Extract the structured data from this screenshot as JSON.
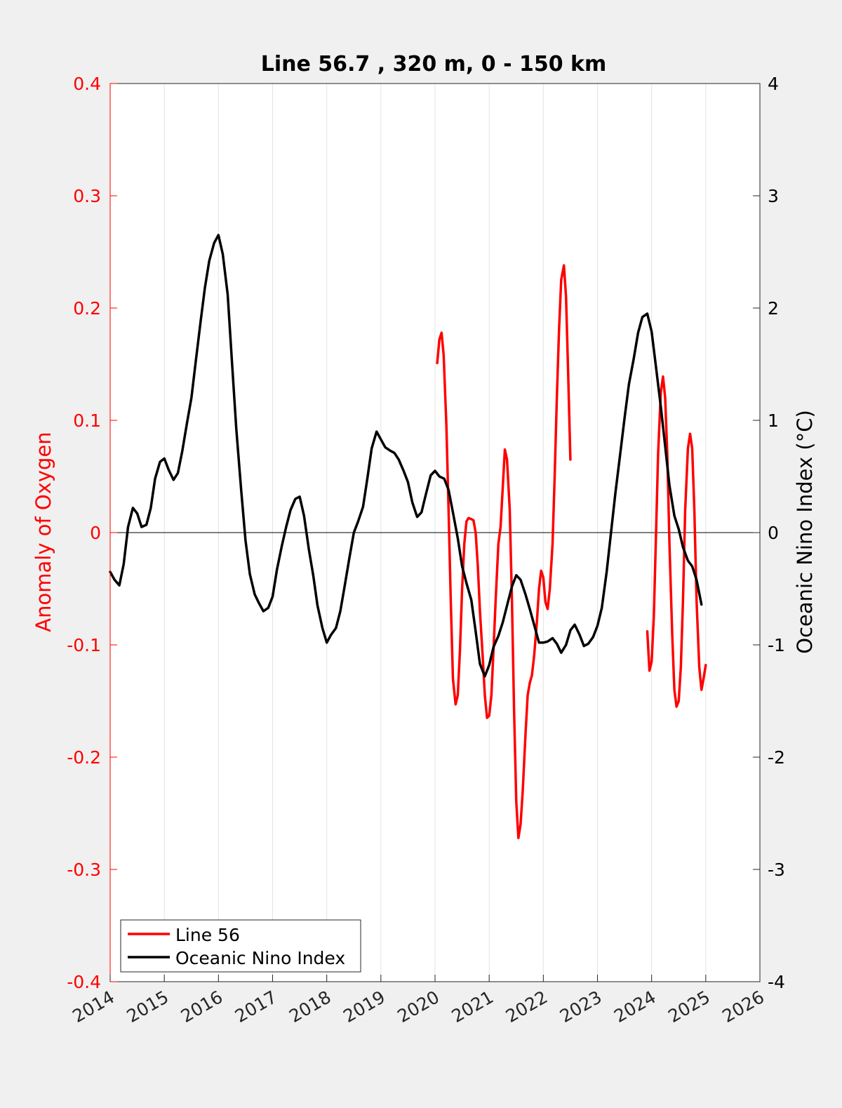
{
  "chart_data": {
    "type": "line",
    "title": "Line 56.7 , 320 m, 0 - 150 km",
    "xlabel": "",
    "ylabel_left": "Anomaly of Oxygen",
    "ylabel_right": "Oceanic Nino Index (°C)",
    "xlim": [
      2014,
      2026
    ],
    "ylim_left": [
      -0.4,
      0.4
    ],
    "ylim_right": [
      -4,
      4
    ],
    "x_ticks": [
      2014,
      2015,
      2016,
      2017,
      2018,
      2019,
      2020,
      2021,
      2022,
      2023,
      2024,
      2025,
      2026
    ],
    "x_tick_labels": [
      "2014",
      "2015",
      "2016",
      "2017",
      "2018",
      "2019",
      "2020",
      "2021",
      "2022",
      "2023",
      "2024",
      "2025",
      "2026"
    ],
    "y_ticks_left": [
      -0.4,
      -0.3,
      -0.2,
      -0.1,
      0,
      0.1,
      0.2,
      0.3,
      0.4
    ],
    "y_tick_labels_left": [
      "-0.4",
      "-0.3",
      "-0.2",
      "-0.1",
      "0",
      "0.1",
      "0.2",
      "0.3",
      "0.4"
    ],
    "y_ticks_right": [
      -4,
      -3,
      -2,
      -1,
      0,
      1,
      2,
      3,
      4
    ],
    "y_tick_labels_right": [
      "-4",
      "-3",
      "-2",
      "-1",
      "0",
      "1",
      "2",
      "3",
      "4"
    ],
    "grid": "vertical",
    "zero_line": true,
    "legend_position": "bottom-left",
    "colors": {
      "line56": "#ff0000",
      "oni": "#000000",
      "axis_left": "#ff0000",
      "axis_right": "#000000"
    },
    "series": [
      {
        "name": "Line 56",
        "axis": "left",
        "color": "#ff0000",
        "segments": [
          [
            [
              2020.04,
              0.151
            ],
            [
              2020.08,
              0.172
            ],
            [
              2020.12,
              0.178
            ],
            [
              2020.16,
              0.158
            ],
            [
              2020.21,
              0.095
            ],
            [
              2020.25,
              0.02
            ],
            [
              2020.29,
              -0.06
            ],
            [
              2020.33,
              -0.13
            ],
            [
              2020.38,
              -0.153
            ],
            [
              2020.42,
              -0.145
            ],
            [
              2020.46,
              -0.105
            ],
            [
              2020.5,
              -0.05
            ],
            [
              2020.54,
              -0.01
            ],
            [
              2020.58,
              0.01
            ],
            [
              2020.62,
              0.013
            ],
            [
              2020.67,
              0.012
            ],
            [
              2020.71,
              0.011
            ],
            [
              2020.75,
              0.0
            ],
            [
              2020.79,
              -0.03
            ],
            [
              2020.83,
              -0.07
            ],
            [
              2020.88,
              -0.11
            ],
            [
              2020.92,
              -0.145
            ],
            [
              2020.96,
              -0.165
            ],
            [
              2021.0,
              -0.163
            ],
            [
              2021.04,
              -0.145
            ],
            [
              2021.08,
              -0.105
            ],
            [
              2021.12,
              -0.06
            ],
            [
              2021.17,
              -0.01
            ],
            [
              2021.21,
              0.005
            ],
            [
              2021.25,
              0.04
            ],
            [
              2021.29,
              0.074
            ],
            [
              2021.33,
              0.065
            ],
            [
              2021.38,
              0.02
            ],
            [
              2021.42,
              -0.06
            ],
            [
              2021.46,
              -0.16
            ],
            [
              2021.5,
              -0.24
            ],
            [
              2021.54,
              -0.272
            ],
            [
              2021.58,
              -0.26
            ],
            [
              2021.62,
              -0.23
            ],
            [
              2021.67,
              -0.18
            ],
            [
              2021.71,
              -0.145
            ],
            [
              2021.75,
              -0.134
            ],
            [
              2021.79,
              -0.127
            ],
            [
              2021.83,
              -0.11
            ],
            [
              2021.88,
              -0.08
            ],
            [
              2021.92,
              -0.05
            ],
            [
              2021.96,
              -0.034
            ],
            [
              2022.0,
              -0.04
            ],
            [
              2022.04,
              -0.062
            ],
            [
              2022.08,
              -0.068
            ],
            [
              2022.12,
              -0.05
            ],
            [
              2022.17,
              -0.01
            ],
            [
              2022.21,
              0.05
            ],
            [
              2022.25,
              0.12
            ],
            [
              2022.29,
              0.18
            ],
            [
              2022.33,
              0.225
            ],
            [
              2022.38,
              0.238
            ],
            [
              2022.42,
              0.21
            ],
            [
              2022.46,
              0.14
            ],
            [
              2022.5,
              0.065
            ]
          ],
          [
            [
              2023.92,
              -0.088
            ],
            [
              2023.96,
              -0.123
            ],
            [
              2024.0,
              -0.115
            ],
            [
              2024.04,
              -0.075
            ],
            [
              2024.08,
              -0.005
            ],
            [
              2024.12,
              0.07
            ],
            [
              2024.17,
              0.125
            ],
            [
              2024.21,
              0.139
            ],
            [
              2024.25,
              0.12
            ],
            [
              2024.29,
              0.07
            ],
            [
              2024.33,
              -0.01
            ],
            [
              2024.38,
              -0.09
            ],
            [
              2024.42,
              -0.14
            ],
            [
              2024.46,
              -0.155
            ],
            [
              2024.5,
              -0.15
            ],
            [
              2024.54,
              -0.12
            ],
            [
              2024.58,
              -0.06
            ],
            [
              2024.62,
              0.02
            ],
            [
              2024.67,
              0.075
            ],
            [
              2024.71,
              0.088
            ],
            [
              2024.75,
              0.075
            ],
            [
              2024.79,
              0.02
            ],
            [
              2024.83,
              -0.06
            ],
            [
              2024.88,
              -0.12
            ],
            [
              2024.92,
              -0.14
            ],
            [
              2024.96,
              -0.13
            ],
            [
              2025.0,
              -0.118
            ]
          ]
        ]
      },
      {
        "name": "Oceanic Nino Index",
        "axis": "right",
        "color": "#000000",
        "segments": [
          [
            [
              2014.0,
              -0.35
            ],
            [
              2014.08,
              -0.42
            ],
            [
              2014.17,
              -0.47
            ],
            [
              2014.25,
              -0.28
            ],
            [
              2014.33,
              0.05
            ],
            [
              2014.42,
              0.22
            ],
            [
              2014.5,
              0.17
            ],
            [
              2014.58,
              0.05
            ],
            [
              2014.67,
              0.07
            ],
            [
              2014.75,
              0.22
            ],
            [
              2014.83,
              0.48
            ],
            [
              2014.92,
              0.63
            ],
            [
              2015.0,
              0.66
            ],
            [
              2015.08,
              0.56
            ],
            [
              2015.17,
              0.47
            ],
            [
              2015.25,
              0.53
            ],
            [
              2015.33,
              0.72
            ],
            [
              2015.42,
              0.98
            ],
            [
              2015.5,
              1.2
            ],
            [
              2015.58,
              1.52
            ],
            [
              2015.67,
              1.88
            ],
            [
              2015.75,
              2.18
            ],
            [
              2015.83,
              2.42
            ],
            [
              2015.92,
              2.58
            ],
            [
              2016.0,
              2.65
            ],
            [
              2016.08,
              2.48
            ],
            [
              2016.17,
              2.12
            ],
            [
              2016.25,
              1.52
            ],
            [
              2016.33,
              0.92
            ],
            [
              2016.42,
              0.38
            ],
            [
              2016.5,
              -0.07
            ],
            [
              2016.58,
              -0.37
            ],
            [
              2016.67,
              -0.55
            ],
            [
              2016.75,
              -0.63
            ],
            [
              2016.83,
              -0.7
            ],
            [
              2016.92,
              -0.67
            ],
            [
              2017.0,
              -0.57
            ],
            [
              2017.08,
              -0.33
            ],
            [
              2017.17,
              -0.12
            ],
            [
              2017.25,
              0.05
            ],
            [
              2017.33,
              0.2
            ],
            [
              2017.42,
              0.3
            ],
            [
              2017.5,
              0.32
            ],
            [
              2017.58,
              0.15
            ],
            [
              2017.67,
              -0.15
            ],
            [
              2017.75,
              -0.38
            ],
            [
              2017.83,
              -0.65
            ],
            [
              2017.92,
              -0.85
            ],
            [
              2018.0,
              -0.98
            ],
            [
              2018.08,
              -0.91
            ],
            [
              2018.17,
              -0.85
            ],
            [
              2018.25,
              -0.7
            ],
            [
              2018.33,
              -0.48
            ],
            [
              2018.42,
              -0.22
            ],
            [
              2018.5,
              0.0
            ],
            [
              2018.58,
              0.1
            ],
            [
              2018.67,
              0.23
            ],
            [
              2018.75,
              0.48
            ],
            [
              2018.83,
              0.75
            ],
            [
              2018.92,
              0.9
            ],
            [
              2019.0,
              0.83
            ],
            [
              2019.08,
              0.76
            ],
            [
              2019.17,
              0.73
            ],
            [
              2019.25,
              0.71
            ],
            [
              2019.33,
              0.65
            ],
            [
              2019.42,
              0.55
            ],
            [
              2019.5,
              0.45
            ],
            [
              2019.58,
              0.27
            ],
            [
              2019.67,
              0.14
            ],
            [
              2019.75,
              0.18
            ],
            [
              2019.83,
              0.34
            ],
            [
              2019.92,
              0.51
            ],
            [
              2020.0,
              0.55
            ],
            [
              2020.08,
              0.5
            ],
            [
              2020.17,
              0.48
            ],
            [
              2020.25,
              0.38
            ],
            [
              2020.33,
              0.18
            ],
            [
              2020.42,
              -0.05
            ],
            [
              2020.5,
              -0.3
            ],
            [
              2020.58,
              -0.45
            ],
            [
              2020.67,
              -0.6
            ],
            [
              2020.75,
              -0.88
            ],
            [
              2020.83,
              -1.17
            ],
            [
              2020.92,
              -1.28
            ],
            [
              2021.0,
              -1.18
            ],
            [
              2021.08,
              -1.02
            ],
            [
              2021.17,
              -0.92
            ],
            [
              2021.25,
              -0.8
            ],
            [
              2021.33,
              -0.65
            ],
            [
              2021.42,
              -0.48
            ],
            [
              2021.5,
              -0.38
            ],
            [
              2021.58,
              -0.42
            ],
            [
              2021.67,
              -0.55
            ],
            [
              2021.75,
              -0.68
            ],
            [
              2021.83,
              -0.82
            ],
            [
              2021.92,
              -0.98
            ],
            [
              2022.0,
              -0.98
            ],
            [
              2022.08,
              -0.97
            ],
            [
              2022.17,
              -0.94
            ],
            [
              2022.25,
              -0.99
            ],
            [
              2022.33,
              -1.07
            ],
            [
              2022.42,
              -1.0
            ],
            [
              2022.5,
              -0.87
            ],
            [
              2022.58,
              -0.82
            ],
            [
              2022.67,
              -0.91
            ],
            [
              2022.75,
              -1.01
            ],
            [
              2022.83,
              -0.99
            ],
            [
              2022.92,
              -0.93
            ],
            [
              2023.0,
              -0.83
            ],
            [
              2023.08,
              -0.67
            ],
            [
              2023.17,
              -0.35
            ],
            [
              2023.25,
              0.0
            ],
            [
              2023.33,
              0.35
            ],
            [
              2023.42,
              0.7
            ],
            [
              2023.5,
              1.02
            ],
            [
              2023.58,
              1.32
            ],
            [
              2023.67,
              1.55
            ],
            [
              2023.75,
              1.78
            ],
            [
              2023.83,
              1.92
            ],
            [
              2023.92,
              1.95
            ],
            [
              2024.0,
              1.79
            ],
            [
              2024.08,
              1.48
            ],
            [
              2024.17,
              1.12
            ],
            [
              2024.25,
              0.77
            ],
            [
              2024.33,
              0.42
            ],
            [
              2024.42,
              0.15
            ],
            [
              2024.5,
              0.03
            ],
            [
              2024.58,
              -0.13
            ],
            [
              2024.67,
              -0.25
            ],
            [
              2024.75,
              -0.3
            ],
            [
              2024.83,
              -0.42
            ],
            [
              2024.92,
              -0.64
            ]
          ]
        ]
      }
    ]
  }
}
